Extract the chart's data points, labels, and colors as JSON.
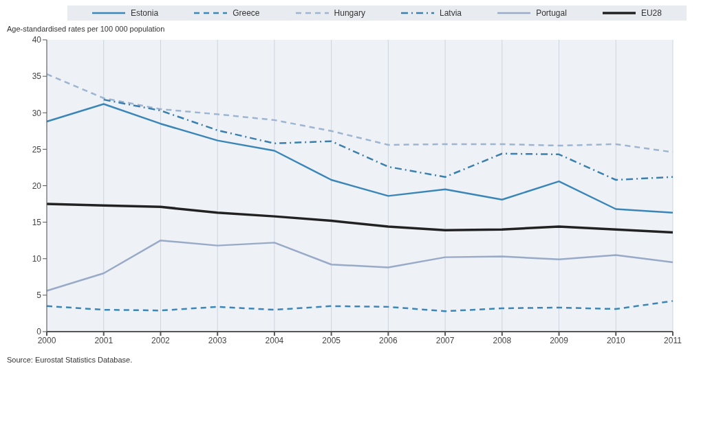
{
  "chart_data": {
    "type": "line",
    "ylabel": "Age-standardised rates per 100 000 population",
    "annotations": [
      "Source: Eurostat Statistics Database."
    ],
    "categories": [
      "2000",
      "2001",
      "2002",
      "2003",
      "2004",
      "2005",
      "2006",
      "2007",
      "2008",
      "2009",
      "2010",
      "2011"
    ],
    "ylim": [
      0,
      40
    ],
    "yticks": [
      0,
      5,
      10,
      15,
      20,
      25,
      30,
      35,
      40
    ],
    "grid": "x",
    "legend": "top",
    "marker": "none",
    "series": [
      {
        "name": "Estonia",
        "color": "#3a86b8",
        "line_style": "solid",
        "values": [
          28.8,
          31.2,
          28.5,
          26.2,
          24.8,
          20.8,
          18.6,
          19.5,
          18.1,
          20.6,
          16.8,
          16.3
        ]
      },
      {
        "name": "Greece",
        "color": "#3a86b8",
        "line_style": "dashed",
        "values": [
          3.5,
          3.0,
          2.9,
          3.4,
          3.0,
          3.5,
          3.4,
          2.8,
          3.2,
          3.3,
          3.1,
          4.2
        ]
      },
      {
        "name": "Hungary",
        "color": "#9db5d0",
        "line_style": "dashed",
        "values": [
          35.3,
          32.0,
          30.5,
          29.8,
          29.0,
          27.5,
          25.6,
          25.7,
          25.7,
          25.5,
          25.7,
          24.6
        ]
      },
      {
        "name": "Latvia",
        "color": "#3a7fae",
        "line_style": "dashdot",
        "values": [
          null,
          31.8,
          30.3,
          27.6,
          25.8,
          26.1,
          22.6,
          21.2,
          24.4,
          24.3,
          20.8,
          21.2
        ]
      },
      {
        "name": "Portugal",
        "color": "#98aac8",
        "line_style": "solid",
        "values": [
          5.6,
          8.0,
          12.5,
          11.8,
          12.2,
          9.2,
          8.8,
          10.2,
          10.3,
          9.9,
          10.5,
          9.5
        ]
      },
      {
        "name": "EU28",
        "color": "#222222",
        "line_style": "solid",
        "values": [
          17.5,
          17.3,
          17.1,
          16.3,
          15.8,
          15.2,
          14.4,
          13.9,
          14.0,
          14.4,
          14.0,
          13.6
        ]
      }
    ]
  }
}
